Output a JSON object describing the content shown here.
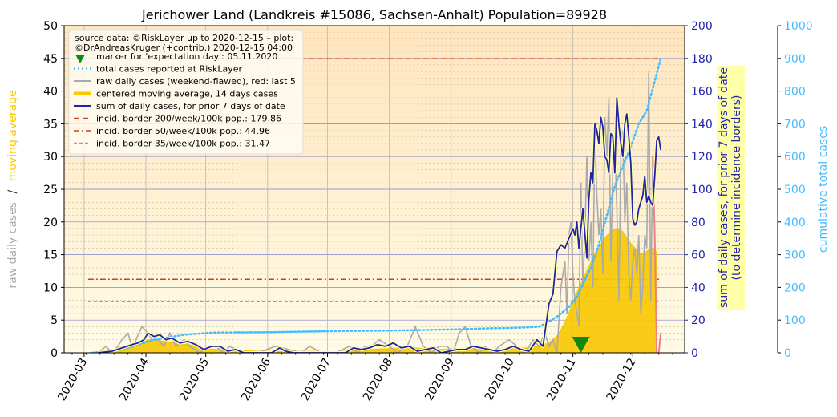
{
  "chart_data": {
    "type": "line",
    "title": "Jerichower Land (Landkreis #15086, Sachsen-Anhalt) Population=89928",
    "x_axis": {
      "type": "date",
      "range": [
        "2020-02-20",
        "2020-12-27"
      ],
      "tick_labels": [
        "2020-03",
        "2020-04",
        "2020-05",
        "2020-06",
        "2020-07",
        "2020-08",
        "2020-09",
        "2020-10",
        "2020-11",
        "2020-12"
      ]
    },
    "y_left": {
      "ylim": [
        0,
        50
      ],
      "ticks": [
        "0",
        "5",
        "10",
        "15",
        "20",
        "25",
        "30",
        "35",
        "40",
        "45",
        "50"
      ],
      "label_part1": "raw daily cases",
      "label_sep": "/",
      "label_part2": "moving average"
    },
    "y_right1": {
      "ylim": [
        0,
        200
      ],
      "ticks": [
        "0",
        "20",
        "40",
        "60",
        "80",
        "100",
        "120",
        "140",
        "160",
        "180",
        "200"
      ],
      "label_line1": "sum of daily cases, for prior 7 days of date",
      "label_line2": "(to determine incidence borders)"
    },
    "y_right2": {
      "ylim": [
        0,
        1000
      ],
      "ticks": [
        "0",
        "100",
        "200",
        "300",
        "400",
        "500",
        "600",
        "700",
        "800",
        "900",
        "1000"
      ],
      "label": "cumulative total cases"
    },
    "legend": {
      "placement": "top-left",
      "source_line1": "source data: ©RiskLayer up to 2020-12-15 – plot:",
      "source_line2": "©DrAndreasKruger (+contrib.) 2020-12-15 04:00",
      "entries": [
        "marker for 'expectation day': 05.11.2020",
        "total cases reported at RiskLayer",
        "raw daily cases (weekend-flawed), red: last 5",
        "centered moving average, 14 days cases",
        "sum of daily cases, for prior 7 days of date",
        "incid. border 200/week/100k pop.: 179.86",
        "incid. border 50/week/100k pop.: 44.96",
        "incid. border 35/week/100k pop.: 31.47"
      ]
    },
    "incidence_borders": [
      {
        "value": 179.86,
        "from": "2020-03-03",
        "to": "2020-12-15",
        "color": "#d04020",
        "dash": "long"
      },
      {
        "value": 44.96,
        "from": "2020-03-03",
        "to": "2020-12-15",
        "color": "#d04020",
        "dash": "dashdot"
      },
      {
        "value": 31.47,
        "from": "2020-03-03",
        "to": "2020-12-15",
        "color": "#f08070",
        "dash": "short"
      }
    ],
    "expectation_marker": {
      "date": "2020-11-05",
      "y": 0
    },
    "series": [
      {
        "name": "raw daily cases (weekend-flawed), red: last 5",
        "axis": "left",
        "color": "#aaaaaa",
        "last5_color": "#f08080",
        "x": [
          "2020-03-08",
          "2020-03-12",
          "2020-03-15",
          "2020-03-18",
          "2020-03-20",
          "2020-03-23",
          "2020-03-25",
          "2020-03-27",
          "2020-03-30",
          "2020-04-02",
          "2020-04-04",
          "2020-04-07",
          "2020-04-10",
          "2020-04-13",
          "2020-04-16",
          "2020-04-20",
          "2020-04-23",
          "2020-04-28",
          "2020-05-02",
          "2020-05-06",
          "2020-05-10",
          "2020-05-13",
          "2020-05-20",
          "2020-05-27",
          "2020-06-05",
          "2020-06-18",
          "2020-06-22",
          "2020-06-28",
          "2020-07-05",
          "2020-07-12",
          "2020-07-16",
          "2020-07-20",
          "2020-07-23",
          "2020-07-27",
          "2020-08-01",
          "2020-08-05",
          "2020-08-10",
          "2020-08-14",
          "2020-08-18",
          "2020-08-22",
          "2020-08-26",
          "2020-08-30",
          "2020-09-02",
          "2020-09-05",
          "2020-09-08",
          "2020-09-11",
          "2020-09-15",
          "2020-09-18",
          "2020-09-22",
          "2020-09-25",
          "2020-09-30",
          "2020-10-04",
          "2020-10-08",
          "2020-10-12",
          "2020-10-15",
          "2020-10-18",
          "2020-10-20",
          "2020-10-22",
          "2020-10-24",
          "2020-10-26",
          "2020-10-27",
          "2020-10-28",
          "2020-10-29",
          "2020-10-30",
          "2020-10-31",
          "2020-11-01",
          "2020-11-02",
          "2020-11-03",
          "2020-11-04",
          "2020-11-05",
          "2020-11-06",
          "2020-11-07",
          "2020-11-08",
          "2020-11-09",
          "2020-11-10",
          "2020-11-11",
          "2020-11-12",
          "2020-11-13",
          "2020-11-14",
          "2020-11-15",
          "2020-11-16",
          "2020-11-17",
          "2020-11-18",
          "2020-11-19",
          "2020-11-20",
          "2020-11-21",
          "2020-11-22",
          "2020-11-23",
          "2020-11-24",
          "2020-11-25",
          "2020-11-26",
          "2020-11-27",
          "2020-11-28",
          "2020-11-29",
          "2020-11-30",
          "2020-12-01",
          "2020-12-02",
          "2020-12-03",
          "2020-12-04",
          "2020-12-05",
          "2020-12-06",
          "2020-12-07",
          "2020-12-08",
          "2020-12-09",
          "2020-12-10",
          "2020-12-11",
          "2020-12-12",
          "2020-12-13",
          "2020-12-14",
          "2020-12-15"
        ],
        "values": [
          0,
          1,
          0,
          1,
          2,
          3,
          1,
          2,
          4,
          3,
          2,
          2,
          1,
          3,
          1,
          2,
          1,
          0,
          1,
          1,
          0,
          1,
          0,
          0,
          1,
          0,
          1,
          0,
          0,
          1,
          0,
          1,
          1,
          2,
          1,
          0,
          1,
          4,
          1,
          0,
          1,
          1,
          0,
          3,
          4,
          1,
          0,
          1,
          0,
          1,
          2,
          1,
          0,
          2,
          1,
          3,
          1,
          2,
          0,
          10,
          12,
          14,
          6,
          18,
          20,
          12,
          8,
          6,
          4,
          26,
          10,
          18,
          30,
          14,
          20,
          10,
          34,
          24,
          18,
          22,
          12,
          36,
          30,
          39,
          14,
          28,
          32,
          22,
          8,
          30,
          34,
          20,
          26,
          12,
          8,
          14,
          16,
          12,
          18,
          6,
          10,
          18,
          16,
          43,
          8,
          30,
          18,
          0,
          0,
          3
        ]
      },
      {
        "name": "centered moving average, 14 days cases",
        "axis": "left",
        "color": "#f8c800",
        "x": [
          "2020-03-05",
          "2020-03-12",
          "2020-03-19",
          "2020-03-26",
          "2020-04-02",
          "2020-04-09",
          "2020-04-16",
          "2020-04-23",
          "2020-04-30",
          "2020-05-07",
          "2020-05-14",
          "2020-05-21",
          "2020-05-28",
          "2020-06-04",
          "2020-06-11",
          "2020-06-18",
          "2020-06-25",
          "2020-07-02",
          "2020-07-09",
          "2020-07-16",
          "2020-07-23",
          "2020-07-30",
          "2020-08-06",
          "2020-08-13",
          "2020-08-20",
          "2020-08-27",
          "2020-09-03",
          "2020-09-10",
          "2020-09-17",
          "2020-09-24",
          "2020-10-01",
          "2020-10-08",
          "2020-10-15",
          "2020-10-20",
          "2020-10-24",
          "2020-10-27",
          "2020-10-30",
          "2020-11-02",
          "2020-11-05",
          "2020-11-08",
          "2020-11-11",
          "2020-11-14",
          "2020-11-17",
          "2020-11-20",
          "2020-11-23",
          "2020-11-26",
          "2020-11-29",
          "2020-12-02",
          "2020-12-05",
          "2020-12-08",
          "2020-12-10",
          "2020-12-12",
          "2020-12-13"
        ],
        "values": [
          0,
          0.2,
          0.6,
          1.2,
          2.0,
          1.8,
          1.4,
          1.2,
          0.6,
          0.5,
          0.4,
          0.3,
          0.2,
          0.2,
          0.1,
          0.2,
          0.2,
          0.1,
          0.2,
          0.4,
          0.5,
          0.6,
          0.7,
          0.8,
          0.5,
          0.5,
          0.6,
          0.7,
          0.6,
          0.5,
          0.6,
          0.7,
          1.0,
          1.5,
          2.5,
          4.0,
          6.0,
          8.5,
          10.5,
          12.5,
          14.5,
          16.0,
          17.5,
          18.5,
          19.0,
          18.5,
          17.0,
          16.0,
          15.0,
          15.5,
          16.0,
          16.0,
          15.0
        ]
      },
      {
        "name": "sum of daily cases, for prior 7 days of date",
        "axis": "right1",
        "color": "#2222aa",
        "x": [
          "2020-03-08",
          "2020-03-15",
          "2020-03-20",
          "2020-03-25",
          "2020-03-28",
          "2020-03-31",
          "2020-04-02",
          "2020-04-05",
          "2020-04-08",
          "2020-04-11",
          "2020-04-14",
          "2020-04-18",
          "2020-04-22",
          "2020-04-26",
          "2020-04-30",
          "2020-05-04",
          "2020-05-08",
          "2020-05-12",
          "2020-05-16",
          "2020-05-20",
          "2020-05-27",
          "2020-06-03",
          "2020-06-07",
          "2020-06-10",
          "2020-06-14",
          "2020-06-21",
          "2020-06-28",
          "2020-07-05",
          "2020-07-10",
          "2020-07-14",
          "2020-07-18",
          "2020-07-22",
          "2020-07-26",
          "2020-07-30",
          "2020-08-03",
          "2020-08-07",
          "2020-08-11",
          "2020-08-15",
          "2020-08-19",
          "2020-08-23",
          "2020-08-27",
          "2020-08-31",
          "2020-09-04",
          "2020-09-08",
          "2020-09-12",
          "2020-09-16",
          "2020-09-20",
          "2020-09-24",
          "2020-09-28",
          "2020-10-02",
          "2020-10-06",
          "2020-10-10",
          "2020-10-14",
          "2020-10-17",
          "2020-10-20",
          "2020-10-22",
          "2020-10-24",
          "2020-10-26",
          "2020-10-28",
          "2020-10-30",
          "2020-11-01",
          "2020-11-02",
          "2020-11-03",
          "2020-11-04",
          "2020-11-05",
          "2020-11-06",
          "2020-11-08",
          "2020-11-09",
          "2020-11-10",
          "2020-11-11",
          "2020-11-12",
          "2020-11-13",
          "2020-11-14",
          "2020-11-15",
          "2020-11-16",
          "2020-11-17",
          "2020-11-18",
          "2020-11-19",
          "2020-11-20",
          "2020-11-21",
          "2020-11-22",
          "2020-11-23",
          "2020-11-24",
          "2020-11-25",
          "2020-11-26",
          "2020-11-27",
          "2020-11-28",
          "2020-11-29",
          "2020-11-30",
          "2020-12-01",
          "2020-12-02",
          "2020-12-03",
          "2020-12-04",
          "2020-12-05",
          "2020-12-06",
          "2020-12-07",
          "2020-12-08",
          "2020-12-09",
          "2020-12-10",
          "2020-12-11",
          "2020-12-12",
          "2020-12-13",
          "2020-12-14",
          "2020-12-15"
        ],
        "values": [
          0,
          1,
          3,
          5,
          6,
          8,
          12,
          10,
          11,
          8,
          9,
          6,
          7,
          5,
          2,
          4,
          4,
          1,
          2,
          0,
          0,
          0,
          3,
          1,
          0,
          0,
          0,
          0,
          0,
          3,
          2,
          3,
          5,
          4,
          6,
          3,
          4,
          1,
          2,
          3,
          0,
          1,
          2,
          2,
          4,
          3,
          2,
          1,
          2,
          4,
          2,
          1,
          8,
          4,
          30,
          36,
          62,
          66,
          64,
          70,
          76,
          72,
          80,
          64,
          76,
          88,
          58,
          94,
          110,
          104,
          140,
          136,
          128,
          144,
          138,
          120,
          118,
          110,
          134,
          132,
          110,
          156,
          140,
          128,
          120,
          140,
          146,
          132,
          116,
          82,
          78,
          80,
          88,
          92,
          96,
          108,
          92,
          96,
          92,
          90,
          108,
          130,
          132,
          124
        ]
      },
      {
        "name": "total cases reported at RiskLayer",
        "axis": "right2",
        "color": "#44bbff",
        "x": [
          "2020-03-05",
          "2020-03-20",
          "2020-04-05",
          "2020-04-20",
          "2020-05-05",
          "2020-06-01",
          "2020-07-01",
          "2020-08-01",
          "2020-08-20",
          "2020-09-05",
          "2020-09-20",
          "2020-10-01",
          "2020-10-10",
          "2020-10-15",
          "2020-10-20",
          "2020-10-25",
          "2020-10-30",
          "2020-11-03",
          "2020-11-06",
          "2020-11-10",
          "2020-11-14",
          "2020-11-18",
          "2020-11-22",
          "2020-11-26",
          "2020-11-30",
          "2020-12-04",
          "2020-12-08",
          "2020-12-12",
          "2020-12-15"
        ],
        "values": [
          0,
          10,
          40,
          55,
          62,
          63,
          66,
          68,
          70,
          72,
          75,
          76,
          78,
          80,
          95,
          115,
          140,
          170,
          210,
          260,
          330,
          420,
          510,
          570,
          630,
          700,
          740,
          830,
          900
        ]
      }
    ]
  }
}
